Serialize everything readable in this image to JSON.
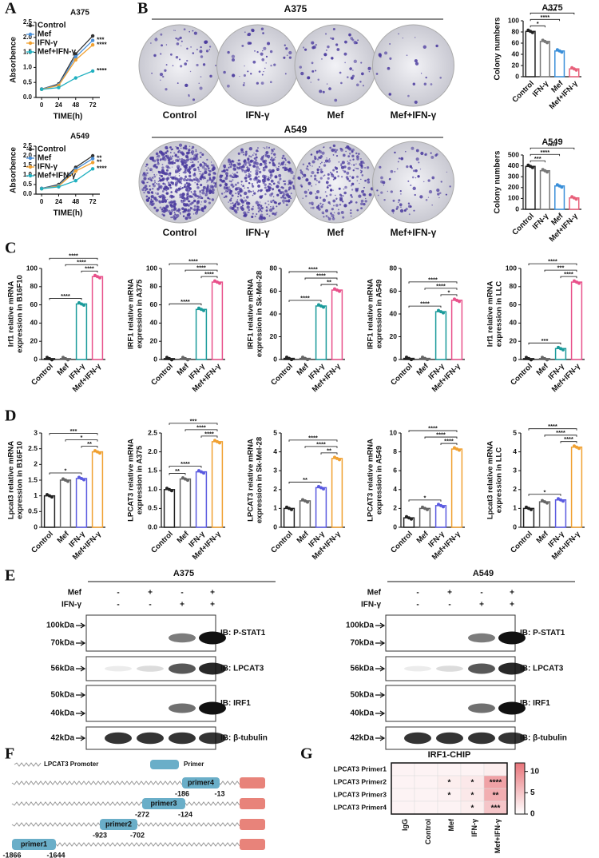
{
  "panel_labels": [
    "A",
    "B",
    "C",
    "D",
    "E",
    "F",
    "G"
  ],
  "colony_images": [
    {
      "title": "A375",
      "labels": [
        "Control",
        "IFN-γ",
        "Mef",
        "Mef+IFN-γ"
      ]
    },
    {
      "title": "A549",
      "labels": [
        "Control",
        "IFN-γ",
        "Mef",
        "Mef+IFN-γ"
      ]
    }
  ],
  "western_blots": [
    {
      "title": "A375",
      "conditions": [
        {
          "name": "Mef",
          "signs": [
            "-",
            "+",
            "-",
            "+"
          ]
        },
        {
          "name": "IFN-γ",
          "signs": [
            "-",
            "-",
            "+",
            "+"
          ]
        }
      ],
      "blots": [
        {
          "markers": [
            "100kDa",
            "70kDa"
          ],
          "label": "IB: P-STAT1"
        },
        {
          "markers": [
            "56kDa"
          ],
          "label": "IB: LPCAT3"
        },
        {
          "markers": [
            "50kDa",
            "40kDa"
          ],
          "label": "IB: IRF1"
        },
        {
          "markers": [
            "42kDa"
          ],
          "label": "IB: β-tubulin"
        }
      ]
    },
    {
      "title": "A549",
      "conditions": [
        {
          "name": "Mef",
          "signs": [
            "-",
            "+",
            "-",
            "+"
          ]
        },
        {
          "name": "IFN-γ",
          "signs": [
            "-",
            "-",
            "+",
            "+"
          ]
        }
      ],
      "blots": [
        {
          "markers": [
            "100kDa",
            "70kDa"
          ],
          "label": "IB: P-STAT1"
        },
        {
          "markers": [
            "56kDa"
          ],
          "label": "IB: LPCAT3"
        },
        {
          "markers": [
            "50kDa",
            "40kDa"
          ],
          "label": "IB: IRF1"
        },
        {
          "markers": [
            "42kDa"
          ],
          "label": "IB: β-tubulin"
        }
      ]
    }
  ],
  "promoter_diagram": {
    "legend": [
      "LPCAT3 Promoter",
      "Primer"
    ],
    "primers": [
      {
        "name": "primer4",
        "start": "-186",
        "end": "-13"
      },
      {
        "name": "primer3",
        "start": "-272",
        "end": "-124"
      },
      {
        "name": "primer2",
        "start": "-923",
        "end": "-702"
      },
      {
        "name": "primer1",
        "start": "-1866",
        "end": "-1644"
      }
    ]
  },
  "chart_data": [
    {
      "type": "line",
      "title": "A375",
      "x_label": "TIME(h)",
      "y_label": "Absorbence",
      "x": [
        0,
        24,
        48,
        72
      ],
      "xlim": [
        -8,
        82
      ],
      "xticks": [
        0,
        24,
        48,
        72
      ],
      "ylim": [
        0,
        2.5
      ],
      "yticks": [
        {
          "value": 0,
          "label": "0.0"
        },
        0.5,
        {
          "value": 1,
          "label": "1.0"
        },
        1.5,
        {
          "value": 2,
          "label": "2.0"
        },
        2.5
      ],
      "series": [
        {
          "name": "Control",
          "color": "#333333",
          "values": [
            0.28,
            0.45,
            1.45,
            2.05
          ]
        },
        {
          "name": "Mef",
          "color": "#4a90d9",
          "values": [
            0.28,
            0.42,
            1.35,
            1.9
          ],
          "end_label": "***"
        },
        {
          "name": "IFN-γ",
          "color": "#f0a030",
          "values": [
            0.27,
            0.4,
            1.25,
            1.75
          ],
          "end_label": "****"
        },
        {
          "name": "Mef+IFN-γ",
          "color": "#20b0c0",
          "values": [
            0.27,
            0.33,
            0.65,
            0.88
          ],
          "end_label": "****"
        }
      ]
    },
    {
      "type": "line",
      "title": "A549",
      "x_label": "TIME(h)",
      "y_label": "Absorbence",
      "x": [
        0,
        24,
        48,
        72
      ],
      "xlim": [
        -8,
        82
      ],
      "xticks": [
        0,
        24,
        48,
        72
      ],
      "ylim": [
        0,
        2.5
      ],
      "yticks": [
        {
          "value": 0,
          "label": "0.0"
        },
        0.5,
        {
          "value": 1,
          "label": "1.0"
        },
        1.5,
        {
          "value": 2,
          "label": "2.0"
        },
        2.5
      ],
      "series": [
        {
          "name": "Control",
          "color": "#333333",
          "values": [
            0.3,
            0.5,
            1.4,
            2.0
          ]
        },
        {
          "name": "Mef",
          "color": "#4a90d9",
          "values": [
            0.3,
            0.45,
            1.3,
            1.85
          ],
          "end_label": "**"
        },
        {
          "name": "IFN-γ",
          "color": "#f0a030",
          "values": [
            0.28,
            0.42,
            1.2,
            1.65
          ],
          "end_label": "**"
        },
        {
          "name": "Mef+IFN-γ",
          "color": "#20b0c0",
          "values": [
            0.28,
            0.38,
            0.7,
            1.32
          ],
          "end_label": "****"
        }
      ]
    },
    {
      "type": "bar",
      "title": "A375",
      "y_label": "Colony numbers",
      "categories": [
        "Control",
        "IFN-γ",
        "Mef",
        "Mef+IFN-γ"
      ],
      "values": [
        81,
        63,
        46,
        14
      ],
      "colors": [
        "#222222",
        "#777777",
        "#3a8fd9",
        "#e8607a"
      ],
      "ylim": [
        0,
        100
      ],
      "yticks": [
        0,
        20,
        40,
        60,
        80,
        100
      ],
      "significance": [
        "*",
        "****",
        "****"
      ]
    },
    {
      "type": "bar",
      "title": "A549",
      "y_label": "Colony numbers",
      "categories": [
        "Control",
        "IFN-γ",
        "Mef",
        "Mef+IFN-γ"
      ],
      "values": [
        395,
        355,
        215,
        105
      ],
      "colors": [
        "#222222",
        "#777777",
        "#3a8fd9",
        "#e8607a"
      ],
      "ylim": [
        0,
        500
      ],
      "yticks": [
        0,
        100,
        200,
        300,
        400,
        500
      ],
      "significance": [
        "***",
        "****",
        "****"
      ]
    },
    {
      "type": "bar",
      "y_label": [
        "Irf1 relative mRNA",
        "expression in B16F10"
      ],
      "categories": [
        "Control",
        "Mef",
        "IFN-γ",
        "Mef+IFN-γ"
      ],
      "values": [
        1,
        1,
        61,
        91
      ],
      "colors": [
        "#222222",
        "#666666",
        "#1a9a9a",
        "#e8508a"
      ],
      "ylim": [
        0,
        100
      ],
      "yticks": [
        0,
        20,
        40,
        60,
        80,
        100
      ],
      "significance": [
        "****",
        "****",
        "****",
        "****"
      ]
    },
    {
      "type": "bar",
      "y_label": [
        "IRF1 relative mRNA",
        "expression in A375"
      ],
      "categories": [
        "Control",
        "Mef",
        "IFN-γ",
        "Mef+IFN-γ"
      ],
      "values": [
        1,
        1,
        55,
        85
      ],
      "colors": [
        "#222222",
        "#666666",
        "#1a9a9a",
        "#e8508a"
      ],
      "ylim": [
        0,
        100
      ],
      "yticks": [
        0,
        20,
        40,
        60,
        80,
        100
      ],
      "significance": [
        "****",
        "****",
        "****",
        "****"
      ]
    },
    {
      "type": "bar",
      "y_label": [
        "IRF1 relative mRNA",
        "expression in Sk-Mel-28"
      ],
      "categories": [
        "Control",
        "Mef",
        "IFN-γ",
        "Mef+IFN-γ"
      ],
      "values": [
        1,
        1,
        47,
        61
      ],
      "colors": [
        "#222222",
        "#666666",
        "#1a9a9a",
        "#e8508a"
      ],
      "ylim": [
        0,
        80
      ],
      "yticks": [
        0,
        20,
        40,
        60,
        80
      ],
      "significance": [
        "****",
        "**",
        "****",
        "****"
      ]
    },
    {
      "type": "bar",
      "y_label": [
        "IRF1 relative mRNA",
        "expression in A549"
      ],
      "categories": [
        "Control",
        "Mef",
        "IFN-γ",
        "Mef+IFN-γ"
      ],
      "values": [
        1,
        1,
        42,
        52
      ],
      "colors": [
        "#222222",
        "#666666",
        "#1a9a9a",
        "#e8508a"
      ],
      "ylim": [
        0,
        80
      ],
      "yticks": [
        0,
        20,
        40,
        60,
        80
      ],
      "significance": [
        "****",
        "*",
        "****",
        "****"
      ]
    },
    {
      "type": "bar",
      "y_label": [
        "Irf1 relative mRNA",
        "expression in LLC"
      ],
      "categories": [
        "Control",
        "Mef",
        "IFN-γ",
        "Mef+IFN-γ"
      ],
      "values": [
        1,
        1,
        12,
        85
      ],
      "colors": [
        "#222222",
        "#666666",
        "#1a9a9a",
        "#e8508a"
      ],
      "ylim": [
        0,
        100
      ],
      "yticks": [
        0,
        20,
        40,
        60,
        80,
        100
      ],
      "significance": [
        "***",
        "****",
        "***",
        "****"
      ]
    },
    {
      "type": "bar",
      "y_label": [
        "Lpcat3 relative mRNA",
        "expression in B16F10"
      ],
      "categories": [
        "Control",
        "Mef",
        "IFN-γ",
        "Mef+IFN-γ"
      ],
      "values": [
        1.0,
        1.5,
        1.55,
        2.4
      ],
      "colors": [
        "#222222",
        "#666666",
        "#5a5ae0",
        "#f0a030"
      ],
      "ylim": [
        0,
        3
      ],
      "yticks": [
        0,
        0.5,
        1,
        1.5,
        2,
        2.5,
        3
      ],
      "significance": [
        "*",
        "**",
        "*",
        "***"
      ]
    },
    {
      "type": "bar",
      "y_label": [
        "LPCAT3 relative mRNA",
        "expression in A375"
      ],
      "categories": [
        "Control",
        "Mef",
        "IFN-γ",
        "Mef+IFN-γ"
      ],
      "values": [
        1.0,
        1.28,
        1.47,
        2.27
      ],
      "colors": [
        "#222222",
        "#666666",
        "#5a5ae0",
        "#f0a030"
      ],
      "ylim": [
        0,
        2.5
      ],
      "yticks": [
        {
          "value": 0,
          "label": "0.0"
        },
        0.5,
        {
          "value": 1,
          "label": "1.0"
        },
        1.5,
        {
          "value": 2,
          "label": "2.0"
        },
        2.5
      ],
      "significance": [
        "**",
        "****",
        "****",
        "****",
        "***"
      ]
    },
    {
      "type": "bar",
      "y_label": [
        "LPCAT3 relative mRNA",
        "expression in Sk-Mel-28"
      ],
      "categories": [
        "Control",
        "Mef",
        "IFN-γ",
        "Mef+IFN-γ"
      ],
      "values": [
        1.0,
        1.4,
        2.1,
        3.65
      ],
      "colors": [
        "#222222",
        "#666666",
        "#5a5ae0",
        "#f0a030"
      ],
      "ylim": [
        0,
        5
      ],
      "yticks": [
        0,
        1,
        2,
        3,
        4,
        5
      ],
      "significance": [
        "**",
        "**",
        "****",
        "****"
      ]
    },
    {
      "type": "bar",
      "y_label": [
        "LPCAT3 relative mRNA",
        "expression in A549"
      ],
      "categories": [
        "Control",
        "Mef",
        "IFN-γ",
        "Mef+IFN-γ"
      ],
      "values": [
        1.0,
        2.0,
        2.3,
        8.3
      ],
      "colors": [
        "#222222",
        "#666666",
        "#5a5ae0",
        "#f0a030"
      ],
      "ylim": [
        0,
        10
      ],
      "yticks": [
        0,
        2,
        4,
        6,
        8,
        10
      ],
      "significance": [
        "*",
        "****",
        "****",
        "****"
      ]
    },
    {
      "type": "bar",
      "y_label": [
        "Lpcat3 relative mRNA",
        "expression in LLC"
      ],
      "categories": [
        "Control",
        "Mef",
        "IFN-γ",
        "Mef+IFN-γ"
      ],
      "values": [
        1.0,
        1.35,
        1.45,
        4.25
      ],
      "colors": [
        "#222222",
        "#666666",
        "#5a5ae0",
        "#f0a030"
      ],
      "ylim": [
        0,
        5
      ],
      "yticks": [
        0,
        1,
        2,
        3,
        4,
        5
      ],
      "significance": [
        "*",
        "****",
        "****",
        "****"
      ]
    },
    {
      "type": "heatmap",
      "title": "IRF1-CHIP",
      "rows": [
        "LPCAT3 Primer1",
        "LPCAT3 Primer2",
        "LPCAT3 Primer3",
        "LPCAT3 Primer4"
      ],
      "columns": [
        "IgG",
        "Control",
        "Mef",
        "IFN-γ",
        "Mef+IFN-γ"
      ],
      "values": [
        [
          1,
          1,
          1,
          1,
          1.5
        ],
        [
          1,
          1,
          1.5,
          2,
          8
        ],
        [
          1,
          1,
          1.2,
          2,
          7
        ],
        [
          1,
          1,
          1,
          1.5,
          5
        ]
      ],
      "cell_labels": [
        [
          null,
          null,
          null,
          null,
          null
        ],
        [
          null,
          null,
          "*",
          "*",
          "****"
        ],
        [
          null,
          null,
          "*",
          "*",
          "**"
        ],
        [
          null,
          null,
          null,
          "*",
          "***"
        ]
      ],
      "zlim": [
        0,
        12
      ],
      "zticks": [
        0,
        5,
        10
      ],
      "colors": [
        "#ffffff",
        "#e8747a"
      ]
    }
  ]
}
